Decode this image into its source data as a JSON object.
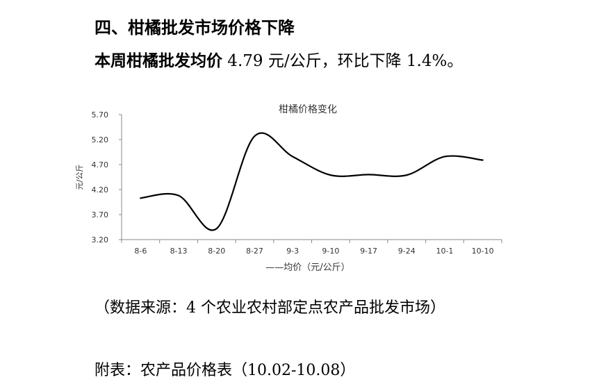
{
  "section": {
    "heading": "四、柑橘批发市场价格下降",
    "summary_lead": "本周柑橘批发均价",
    "summary_rest": " 4.79 元/公斤，环比下降 1.4%。"
  },
  "chart_data": {
    "type": "line",
    "title": "柑橘价格变化",
    "ylabel": "元/公斤",
    "xlabel": "",
    "categories": [
      "8-6",
      "8-13",
      "8-20",
      "8-27",
      "9-3",
      "9-10",
      "9-17",
      "9-24",
      "10-1",
      "10-10"
    ],
    "y_ticks": [
      "3.20",
      "3.70",
      "4.20",
      "4.70",
      "5.20",
      "5.70"
    ],
    "ylim": [
      3.2,
      5.7
    ],
    "grid": false,
    "legend_position": "bottom",
    "legend_label": "——均价（元/公斤）",
    "series": [
      {
        "name": "均价（元/公斤）",
        "color": "#000000",
        "values": [
          4.03,
          4.08,
          3.42,
          5.27,
          4.86,
          4.49,
          4.5,
          4.49,
          4.86,
          4.79
        ]
      }
    ]
  },
  "footer": {
    "source": "（数据来源：4 个农业农村部定点农产品批发市场）",
    "appendix": "附表：农产品价格表（10.02-10.08）"
  }
}
